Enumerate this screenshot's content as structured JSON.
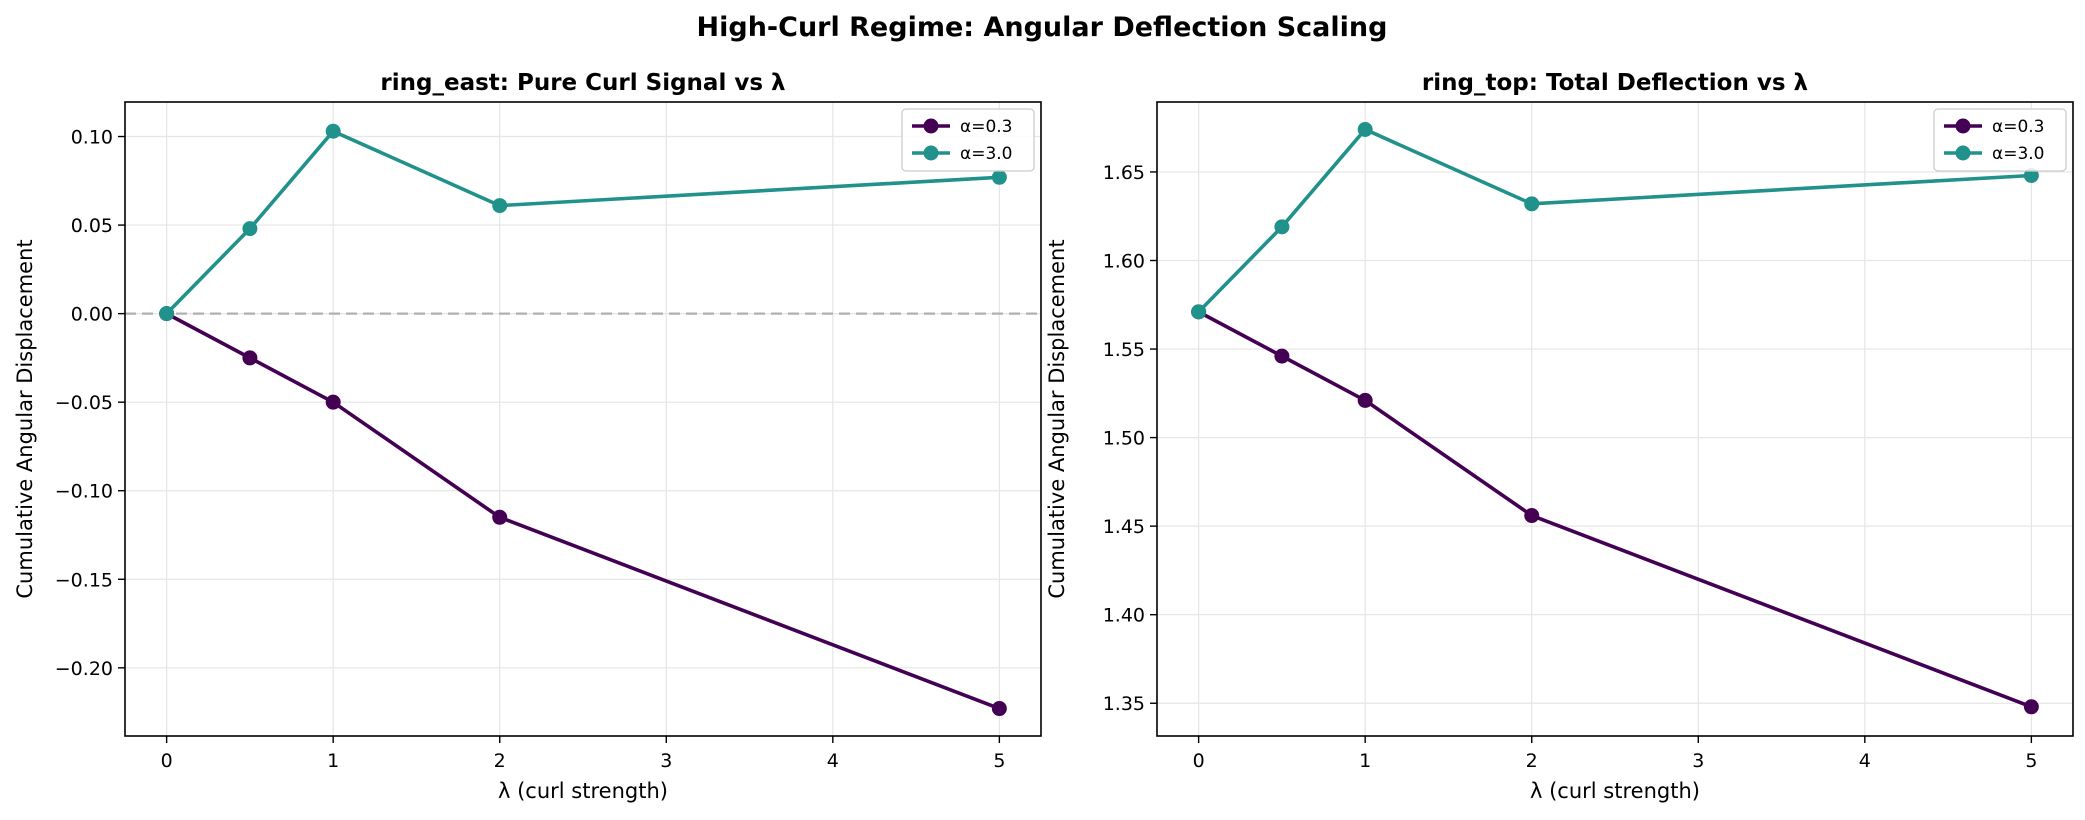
{
  "figure": {
    "suptitle": "High-Curl Regime: Angular Deflection Scaling"
  },
  "colors": {
    "alpha_low": "#440154",
    "alpha_high": "#21918c",
    "zero_line": "#b0b0b0",
    "grid": "#e6e6e6"
  },
  "chart_data": [
    {
      "type": "line",
      "title": "ring_east: Pure Curl Signal vs λ",
      "xlabel": "λ (curl strength)",
      "ylabel": "Cumulative Angular Displacement",
      "x": [
        0,
        0.5,
        1,
        2,
        5
      ],
      "xlim": [
        -0.25,
        5.25
      ],
      "ylim": [
        -0.2385,
        0.1195
      ],
      "xticks": [
        0,
        1,
        2,
        3,
        4,
        5
      ],
      "xtick_labels": [
        "0",
        "1",
        "2",
        "3",
        "4",
        "5"
      ],
      "yticks": [
        0.1,
        0.05,
        0,
        -0.05,
        -0.1,
        -0.15,
        -0.2
      ],
      "ytick_labels": [
        "0.10",
        "0.05",
        "0.00",
        "−0.05",
        "−0.10",
        "−0.15",
        "−0.20"
      ],
      "zero_line": true,
      "grid": true,
      "legend_position": "top-right",
      "series": [
        {
          "name": "α=0.3",
          "color": "#440154",
          "values": [
            0.0,
            -0.025,
            -0.05,
            -0.115,
            -0.223
          ]
        },
        {
          "name": "α=3.0",
          "color": "#21918c",
          "values": [
            0.0,
            0.048,
            0.103,
            0.061,
            0.077
          ]
        }
      ]
    },
    {
      "type": "line",
      "title": "ring_top: Total Deflection vs λ",
      "xlabel": "λ (curl strength)",
      "ylabel": "Cumulative Angular Displacement",
      "x": [
        0,
        0.5,
        1,
        2,
        5
      ],
      "xlim": [
        -0.25,
        5.25
      ],
      "ylim": [
        1.3315,
        1.6895
      ],
      "xticks": [
        0,
        1,
        2,
        3,
        4,
        5
      ],
      "xtick_labels": [
        "0",
        "1",
        "2",
        "3",
        "4",
        "5"
      ],
      "yticks": [
        1.35,
        1.4,
        1.45,
        1.5,
        1.55,
        1.6,
        1.65
      ],
      "ytick_labels": [
        "1.35",
        "1.40",
        "1.45",
        "1.50",
        "1.55",
        "1.60",
        "1.65"
      ],
      "zero_line": false,
      "grid": true,
      "legend_position": "top-right",
      "series": [
        {
          "name": "α=0.3",
          "color": "#440154",
          "values": [
            1.571,
            1.546,
            1.521,
            1.456,
            1.348
          ]
        },
        {
          "name": "α=3.0",
          "color": "#21918c",
          "values": [
            1.571,
            1.619,
            1.674,
            1.632,
            1.648
          ]
        }
      ]
    }
  ]
}
